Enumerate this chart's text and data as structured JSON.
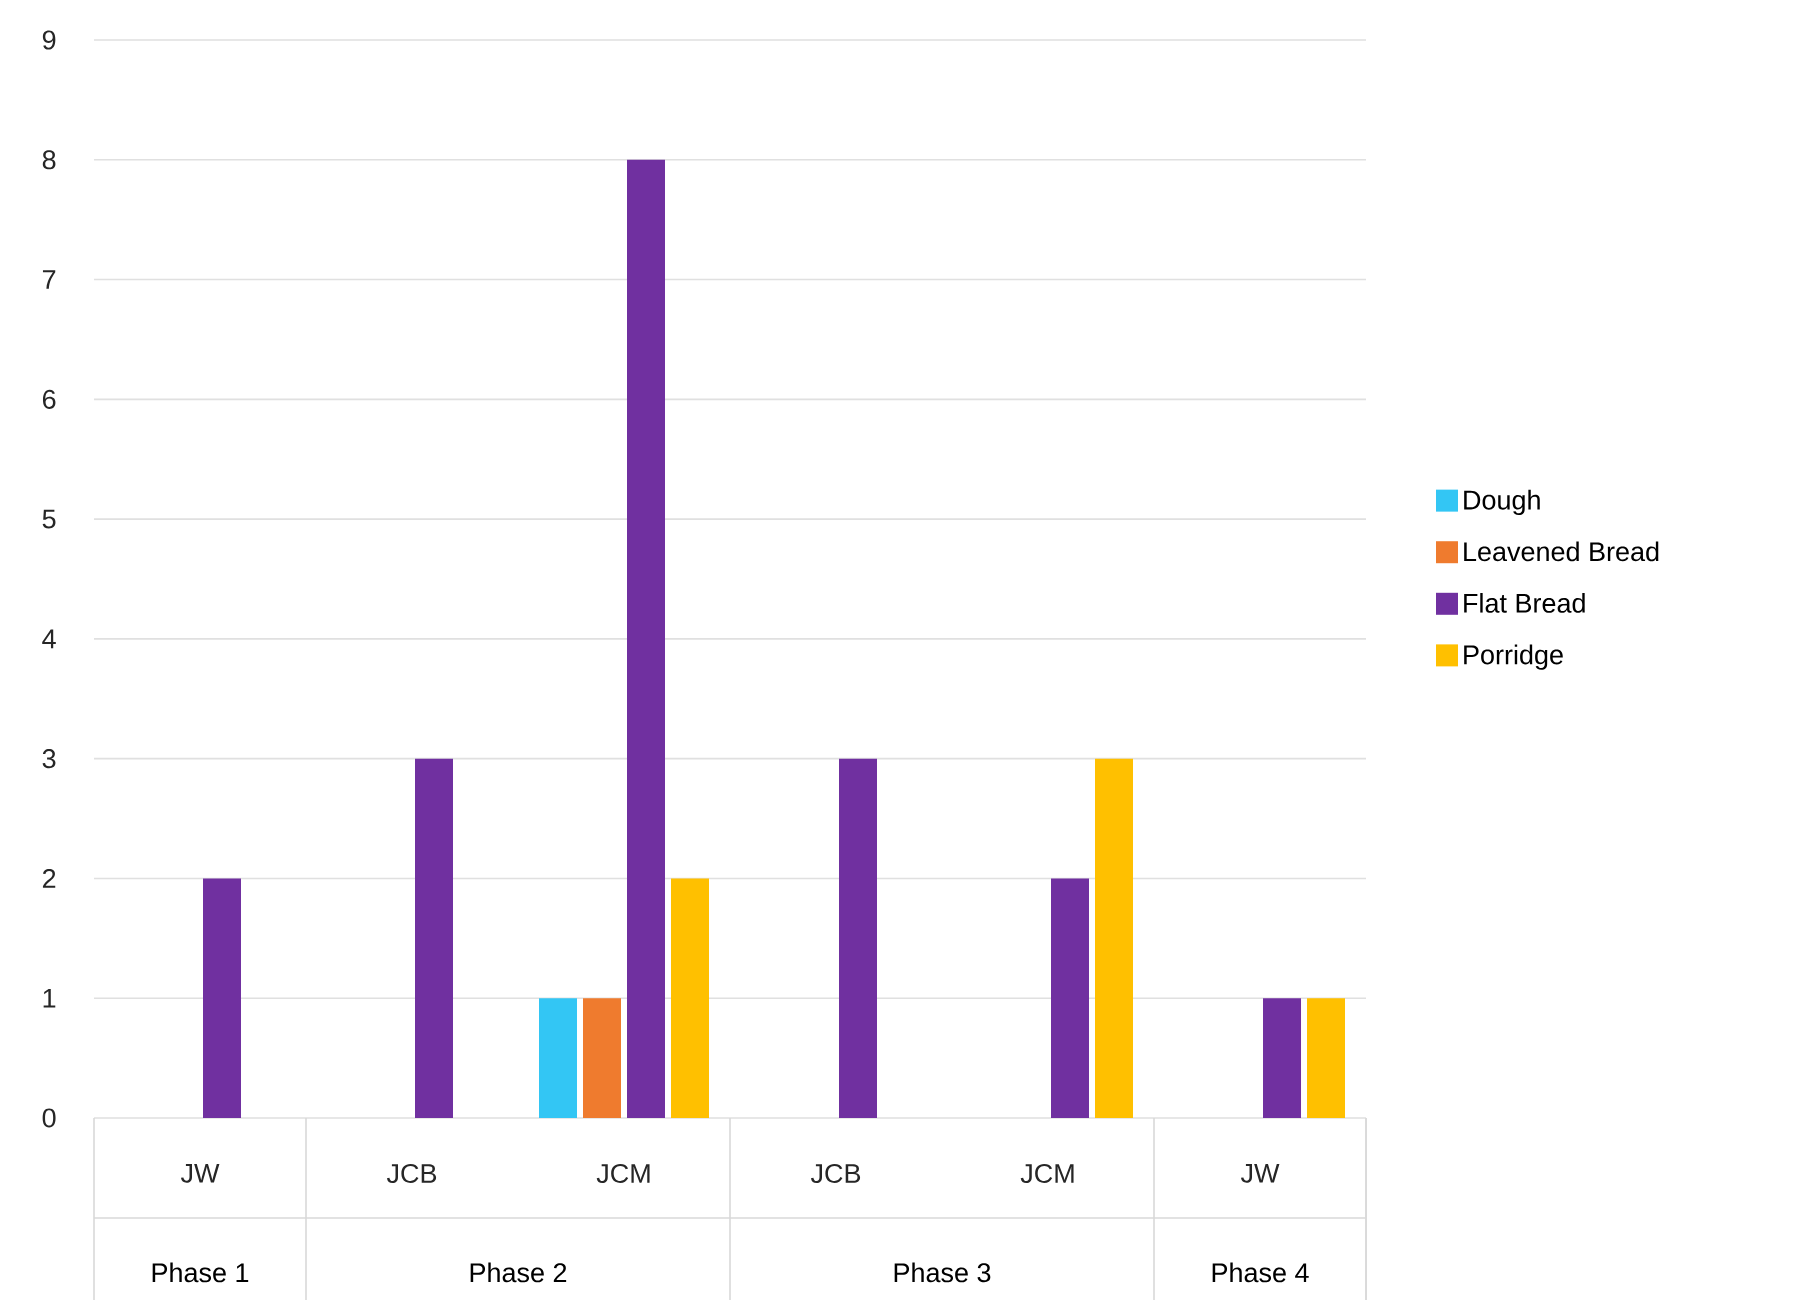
{
  "chart_data": {
    "type": "bar",
    "categories": [
      "JW",
      "JCB",
      "JCM",
      "JCB",
      "JCM",
      "JW"
    ],
    "series": [
      {
        "name": "Dough",
        "color": "#33c6f4",
        "values": [
          null,
          null,
          1,
          null,
          null,
          null
        ]
      },
      {
        "name": "Leavened Bread",
        "color": "#ef7b2e",
        "values": [
          null,
          null,
          1,
          null,
          null,
          null
        ]
      },
      {
        "name": "Flat Bread",
        "color": "#7030a0",
        "values": [
          2,
          3,
          8,
          3,
          2,
          1
        ]
      },
      {
        "name": "Porridge",
        "color": "#ffc000",
        "values": [
          null,
          null,
          2,
          null,
          3,
          1
        ]
      }
    ],
    "ylim": [
      0,
      9
    ],
    "yticks": [
      0,
      1,
      2,
      3,
      4,
      5,
      6,
      7,
      8,
      9
    ],
    "grid": "y",
    "legend": "right",
    "annotations": [
      "Phase 1",
      "Phase 2",
      "Phase 3",
      "Phase 4"
    ]
  }
}
